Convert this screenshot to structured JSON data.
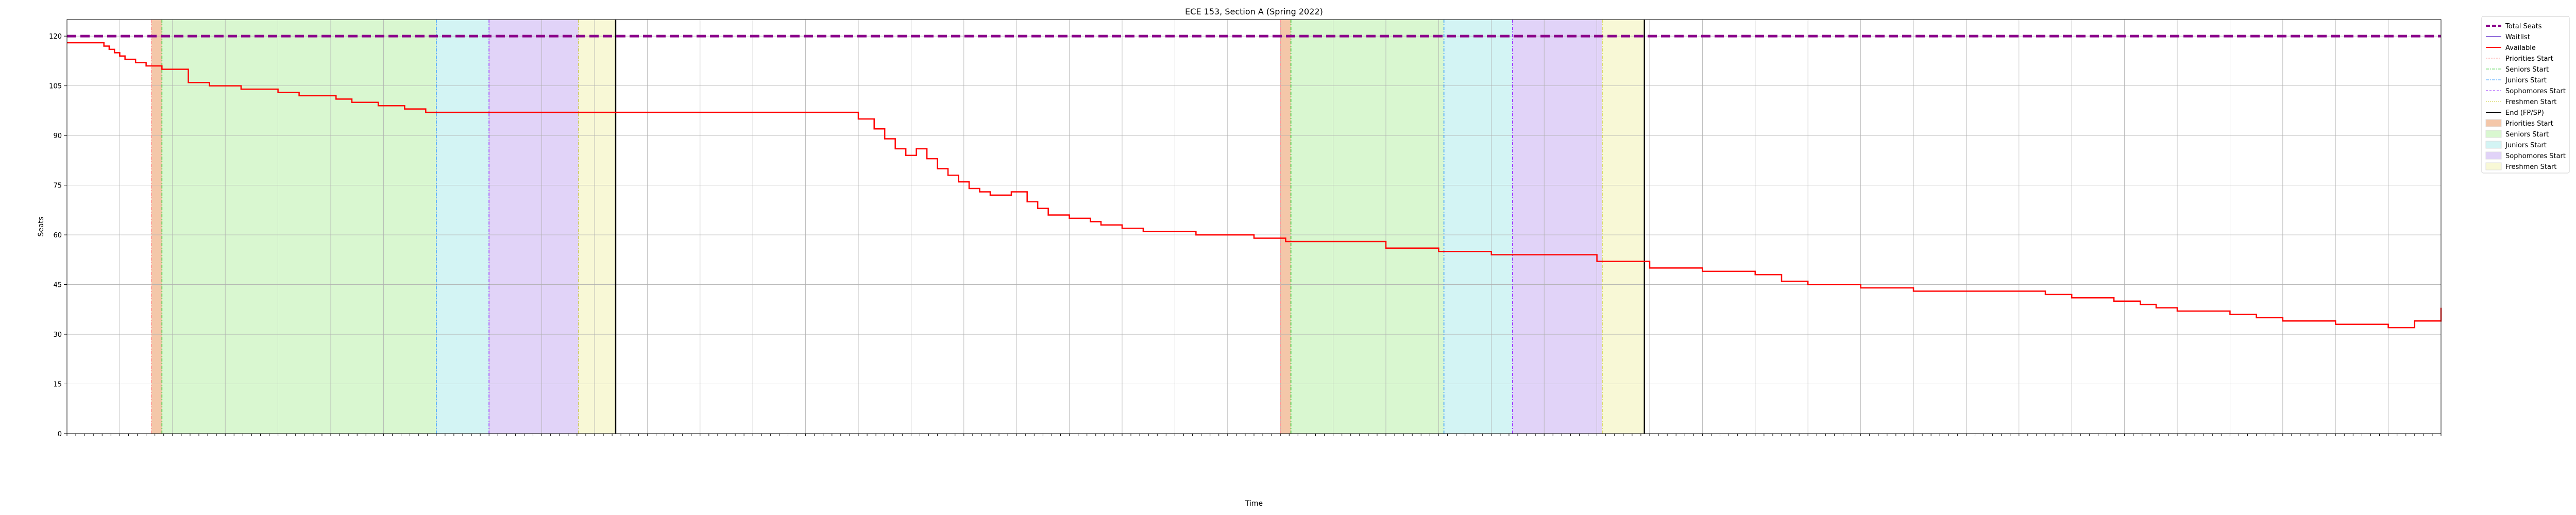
{
  "chart_data": {
    "type": "line",
    "title": "ECE 153, Section A (Spring 2022)",
    "xlabel": "Time",
    "ylabel": "Seats",
    "ylim": [
      0,
      125
    ],
    "yticks": [
      0,
      15,
      30,
      45,
      60,
      75,
      90,
      105,
      120
    ],
    "grid": true,
    "legend_position": "outside-right-top",
    "x_range_days": [
      0,
      45
    ],
    "x_ticks_approx": "one tick every 4 hours (Nov 2021 – Jan 2022); labels not legible",
    "x_tick_count": 271,
    "series": [
      {
        "name": "Total Seats",
        "style": "dashed",
        "color": "#8b008b",
        "value": 120
      },
      {
        "name": "Waitlist",
        "style": "solid",
        "color": "#9370db",
        "values": []
      },
      {
        "name": "Available",
        "style": "steps",
        "color": "#ff0000",
        "x": [
          0,
          0.7,
          0.8,
          0.9,
          1.0,
          1.1,
          1.3,
          1.5,
          1.8,
          2.3,
          2.7,
          3.3,
          4.0,
          4.4,
          5.1,
          5.4,
          5.9,
          6.4,
          6.8,
          7.4,
          8.0,
          8.4,
          14.3,
          15.0,
          15.3,
          15.5,
          15.7,
          15.9,
          16.1,
          16.3,
          16.5,
          16.7,
          16.9,
          17.1,
          17.3,
          17.5,
          17.9,
          18.2,
          18.4,
          18.6,
          19.0,
          19.4,
          19.6,
          20.0,
          20.4,
          21.4,
          21.7,
          22.3,
          22.5,
          23.1,
          25.0,
          26.0,
          27.0,
          29.0,
          30.0,
          31.0,
          32.0,
          32.5,
          33.0,
          34.0,
          35.0,
          36.0,
          37.0,
          37.5,
          38.0,
          38.5,
          38.8,
          39.0,
          39.3,
          39.6,
          40.0,
          40.5,
          41.0,
          41.5,
          42.0,
          43.0,
          44.0,
          44.5,
          45.0
        ],
        "values": [
          118,
          117,
          116,
          115,
          114,
          113,
          112,
          111,
          110,
          106,
          105,
          104,
          103,
          102,
          101,
          100,
          99,
          98,
          97,
          97,
          97,
          97,
          97,
          95,
          92,
          89,
          86,
          84,
          86,
          83,
          80,
          78,
          76,
          74,
          73,
          72,
          73,
          70,
          68,
          66,
          65,
          64,
          63,
          62,
          61,
          60,
          60,
          60,
          59,
          58,
          56,
          55,
          54,
          52,
          50,
          49,
          48,
          46,
          45,
          44,
          43,
          43,
          43,
          42,
          41,
          41,
          40,
          40,
          39,
          38,
          37,
          37,
          36,
          35,
          34,
          33,
          32,
          34,
          38
        ]
      }
    ],
    "period_markers": [
      {
        "name": "Priorities Start",
        "line_color": "#ff9999",
        "fill_color": "#f4c7a9",
        "x": [
          1.6,
          23.0
        ]
      },
      {
        "name": "Seniors Start",
        "line_color": "#33cc33",
        "fill_color": "#d9f7d0",
        "x": [
          1.8,
          23.2
        ]
      },
      {
        "name": "Juniors Start",
        "line_color": "#3399ff",
        "fill_color": "#d3f4f4",
        "x": [
          7.0,
          26.1
        ]
      },
      {
        "name": "Sophomores Start",
        "line_color": "#9933ff",
        "fill_color": "#e1d3f8",
        "x": [
          8.0,
          27.4
        ]
      },
      {
        "name": "Freshmen Start",
        "line_color": "#cccc33",
        "fill_color": "#f8f8d6",
        "x": [
          9.7,
          29.1
        ]
      },
      {
        "name": "End (FP/SP)",
        "line_color": "#000000",
        "x": [
          10.4,
          29.9
        ]
      }
    ],
    "legend": [
      {
        "name": "Total Seats",
        "kind": "line",
        "color": "#8b008b",
        "dash": "8,4",
        "width": 4
      },
      {
        "name": "Waitlist",
        "kind": "line",
        "color": "#9370db",
        "dash": "",
        "width": 2
      },
      {
        "name": "Available",
        "kind": "line",
        "color": "#ff0000",
        "dash": "",
        "width": 2
      },
      {
        "name": "Priorities Start",
        "kind": "line",
        "color": "#ff9999",
        "dash": "3,2",
        "width": 1
      },
      {
        "name": "Seniors Start",
        "kind": "line",
        "color": "#33cc33",
        "dash": "6,2,2,2",
        "width": 1
      },
      {
        "name": "Juniors Start",
        "kind": "line",
        "color": "#3399ff",
        "dash": "6,2,2,2",
        "width": 1
      },
      {
        "name": "Sophomores Start",
        "kind": "line",
        "color": "#9933ff",
        "dash": "4,3",
        "width": 1
      },
      {
        "name": "Freshmen Start",
        "kind": "line",
        "color": "#cccc33",
        "dash": "2,2",
        "width": 1
      },
      {
        "name": "End (FP/SP)",
        "kind": "line",
        "color": "#000000",
        "dash": "",
        "width": 2
      },
      {
        "name": "Priorities Start",
        "kind": "patch",
        "color": "#f4c7a9"
      },
      {
        "name": "Seniors Start",
        "kind": "patch",
        "color": "#d9f7d0"
      },
      {
        "name": "Juniors Start",
        "kind": "patch",
        "color": "#d3f4f4"
      },
      {
        "name": "Sophomores Start",
        "kind": "patch",
        "color": "#e1d3f8"
      },
      {
        "name": "Freshmen Start",
        "kind": "patch",
        "color": "#f8f8d6"
      }
    ]
  }
}
